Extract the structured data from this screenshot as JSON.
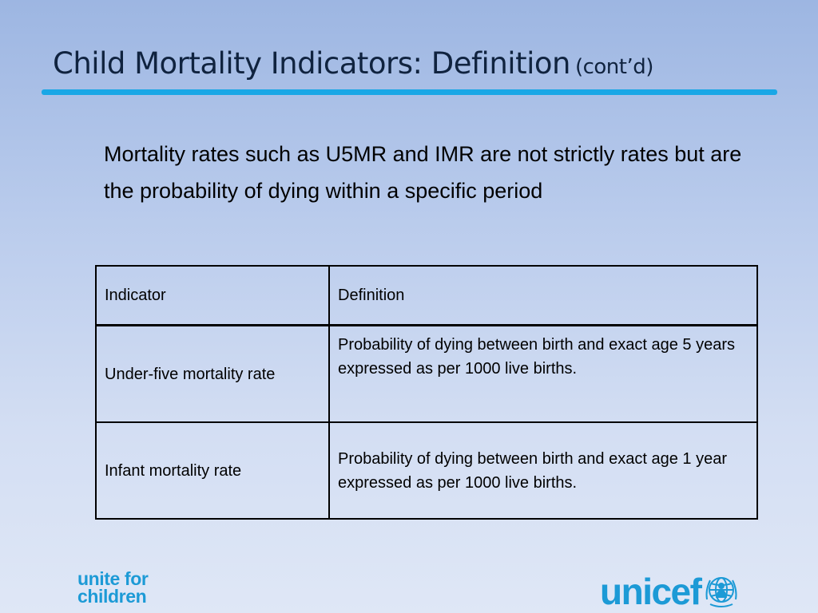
{
  "title": {
    "main": "Child Mortality Indicators: Definition",
    "suffix": "(cont’d)"
  },
  "intro": "Mortality rates such as U5MR and IMR are not strictly rates but are the probability of dying within a specific period",
  "table": {
    "headers": [
      "Indicator",
      "Definition"
    ],
    "rows": [
      {
        "indicator": "Under-five mortality rate",
        "definition": "Probability of dying between birth and exact age 5 years expressed as per 1000 live births."
      },
      {
        "indicator": "Infant mortality rate",
        "definition": "Probability of dying between birth and exact age 1 year expressed as per 1000 live births."
      }
    ]
  },
  "footer": {
    "tagline_line1": "unite for",
    "tagline_line2": "children",
    "logo_text": "unicef",
    "logo_icon": "unicef-emblem-icon",
    "brand_color": "#1c9ad6"
  }
}
